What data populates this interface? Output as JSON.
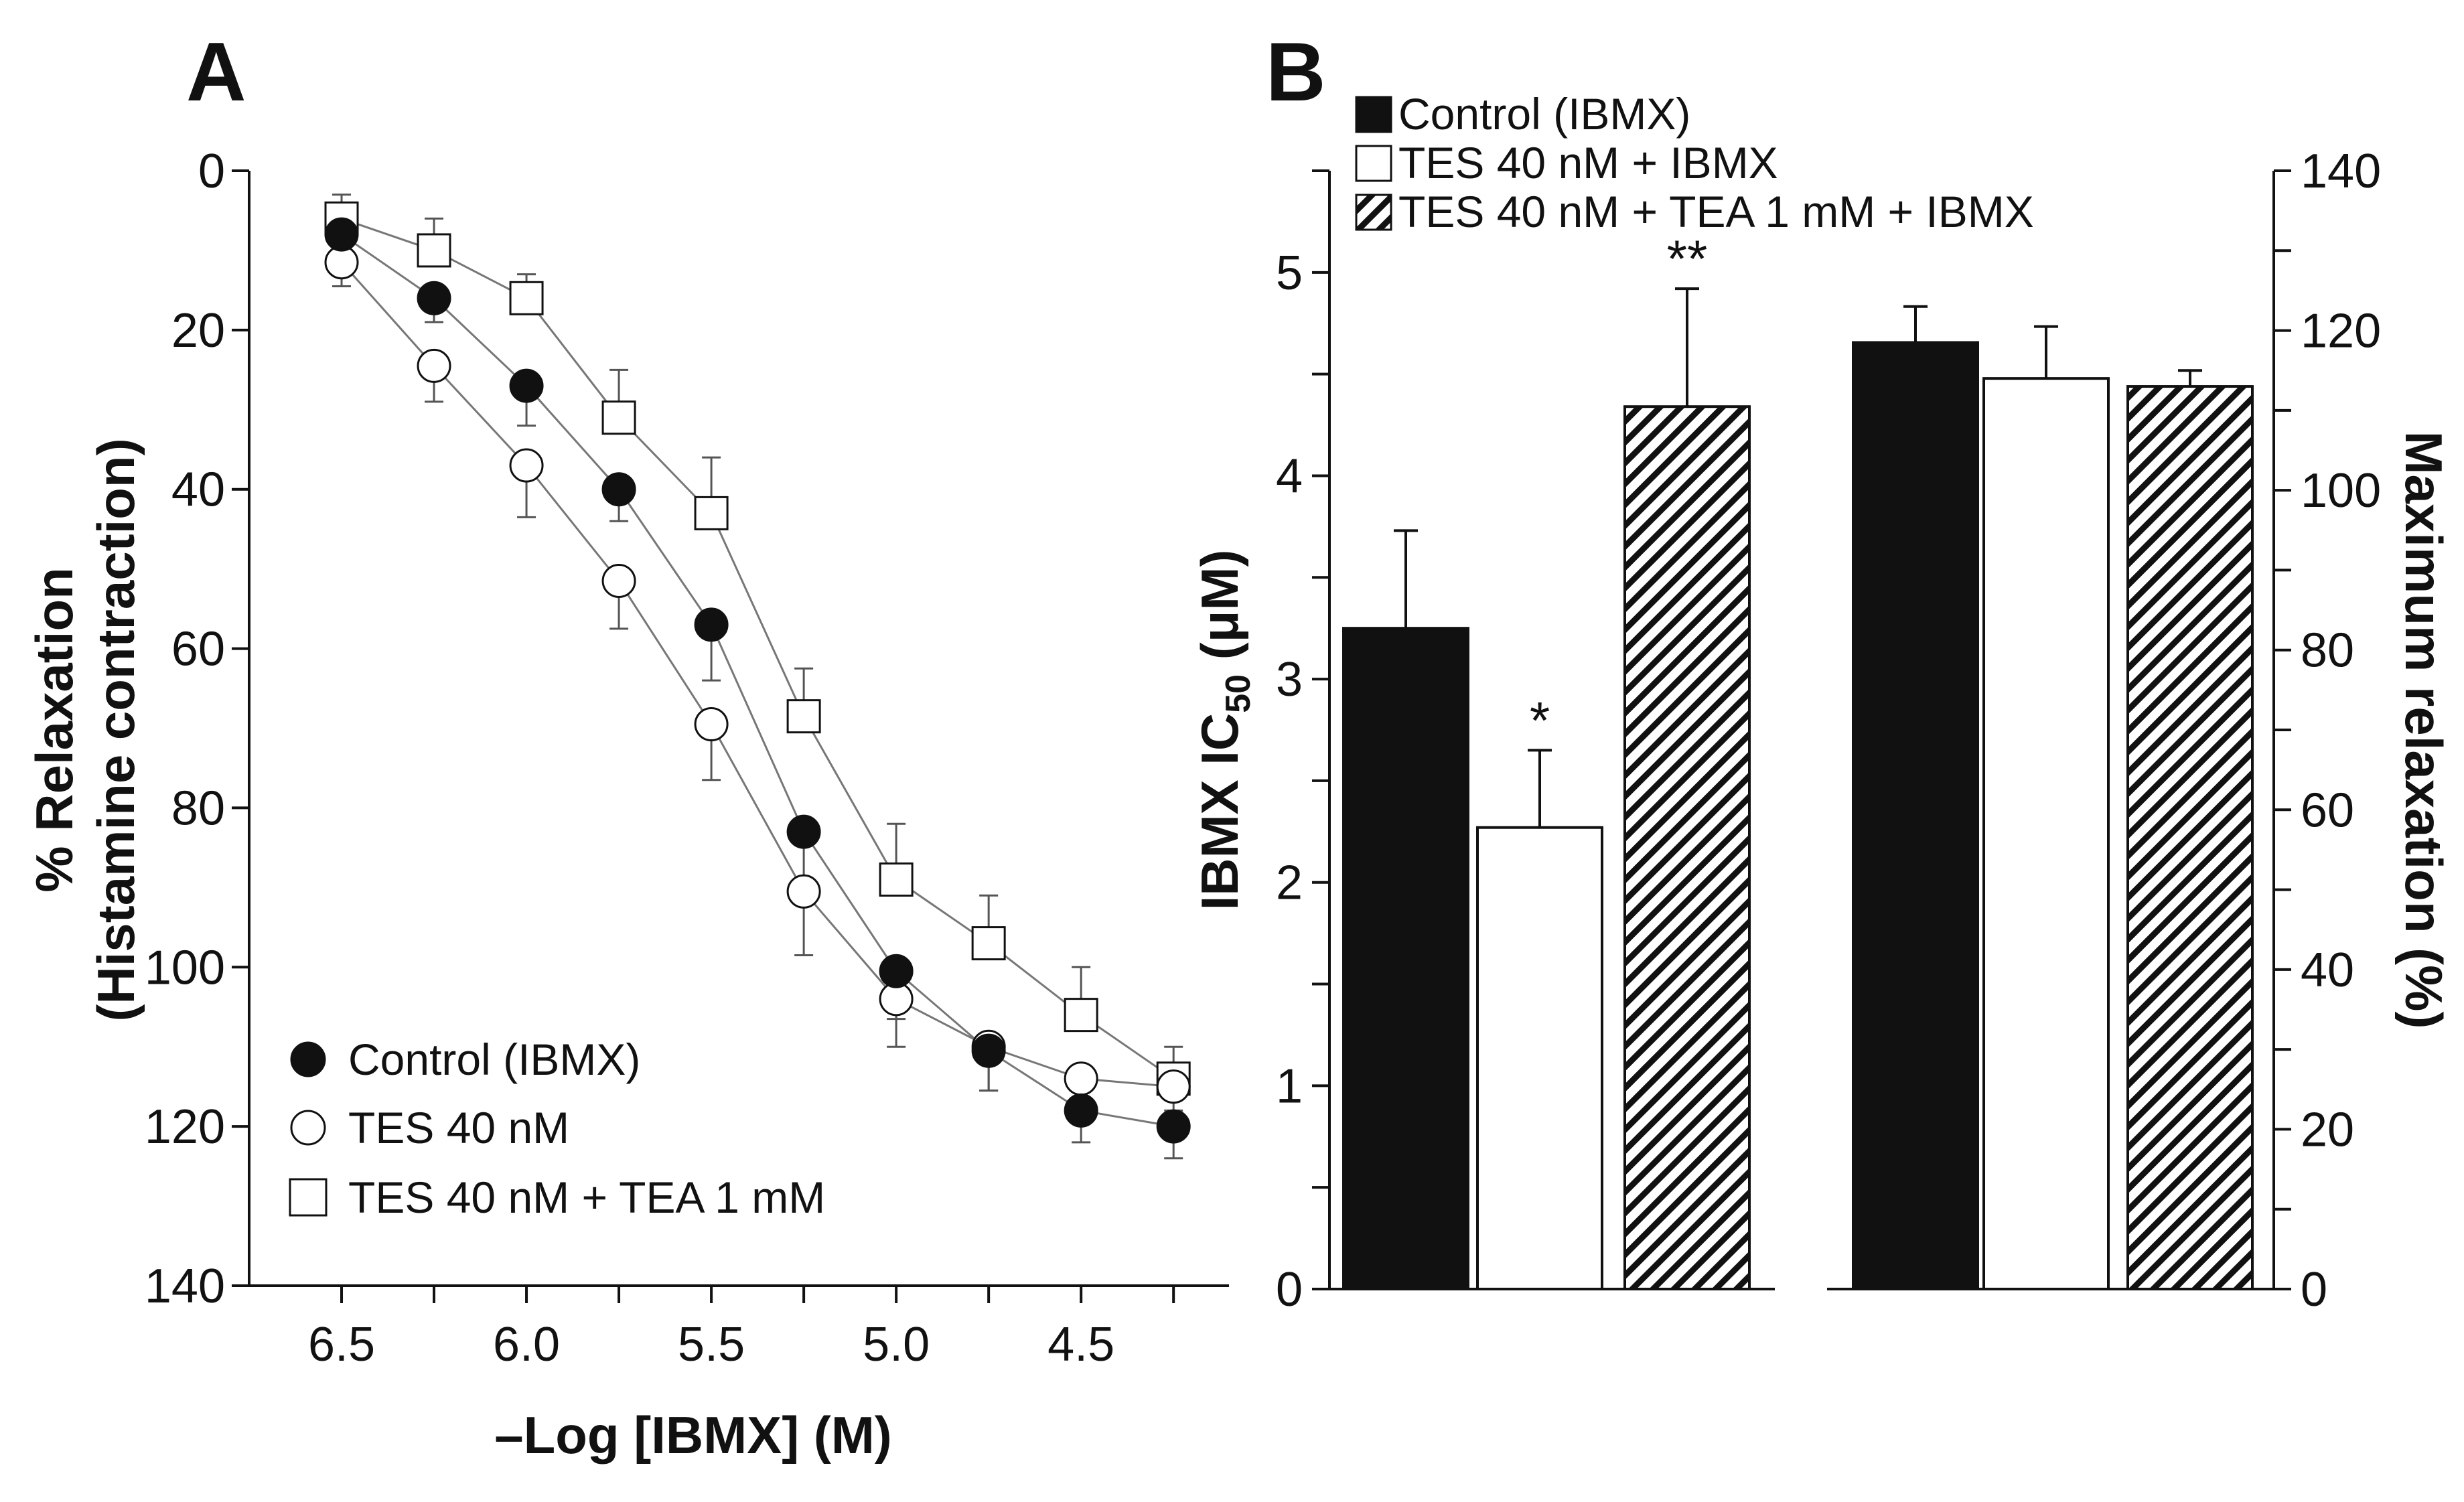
{
  "panel_a_label": "A",
  "panel_b_label": "B",
  "chart_data": [
    {
      "type": "line",
      "panel": "A",
      "xlabel": "–Log [IBMX] (M)",
      "ylabel_line1": "% Relaxation",
      "ylabel_line2": "(Histamine contraction)",
      "x_ticks": [
        "6.5",
        "6.0",
        "5.5",
        "5.0",
        "4.5"
      ],
      "x_tick_values": [
        6.5,
        6.0,
        5.5,
        5.0,
        4.5
      ],
      "y_ticks": [
        "0",
        "20",
        "40",
        "60",
        "80",
        "100",
        "120",
        "140"
      ],
      "y_tick_values": [
        0,
        20,
        40,
        60,
        80,
        100,
        120,
        140
      ],
      "xlim": [
        6.75,
        4.1
      ],
      "ylim": [
        0,
        140
      ],
      "y_inverted": true,
      "x": [
        6.5,
        6.25,
        6.0,
        5.75,
        5.5,
        5.25,
        5.0,
        4.75,
        4.5,
        4.25
      ],
      "series": [
        {
          "name": "Control (IBMX)",
          "marker": "filled-circle",
          "values": [
            8,
            16,
            27,
            40,
            57,
            83,
            100.5,
            110.5,
            118,
            120
          ],
          "errors": [
            2,
            3,
            5,
            4,
            7,
            9,
            6,
            5,
            4,
            4
          ]
        },
        {
          "name": "TES 40 nM",
          "marker": "open-circle",
          "values": [
            11.5,
            24.5,
            37,
            51.5,
            69.5,
            90.5,
            104,
            110,
            114,
            115
          ],
          "errors": [
            3,
            4.5,
            6.5,
            6,
            7,
            8,
            6,
            5.5,
            4,
            3
          ]
        },
        {
          "name": "TES 40 nM + TEA 1 mM",
          "marker": "open-square",
          "values": [
            6,
            10,
            16,
            31,
            43,
            68.5,
            89,
            97,
            106,
            114
          ],
          "errors": [
            3,
            4,
            3,
            6,
            7,
            6,
            7,
            6,
            6,
            4
          ]
        }
      ]
    },
    {
      "type": "bar",
      "panel": "B",
      "ylabel_left": "IBMX IC",
      "ylabel_left_sub": "50",
      "ylabel_left_unit": " (μM)",
      "ylabel_right": "Maximum relaxation (%)",
      "y_left_ticks": [
        "0",
        "1",
        "2",
        "3",
        "4",
        "5"
      ],
      "y_left_values": [
        0,
        1,
        2,
        3,
        4,
        5
      ],
      "ylim_left": [
        0,
        5.5
      ],
      "y_right_ticks": [
        "0",
        "20",
        "40",
        "60",
        "80",
        "100",
        "120",
        "140"
      ],
      "y_right_values": [
        0,
        20,
        40,
        60,
        80,
        100,
        120,
        140
      ],
      "ylim_right": [
        0,
        140
      ],
      "legend": [
        "Control (IBMX)",
        "TES 40 nM + IBMX",
        "TES 40 nM + TEA 1 mM + IBMX"
      ],
      "groups": [
        {
          "name": "IC50",
          "axis": "left",
          "values": [
            3.25,
            2.27,
            4.34
          ],
          "errors": [
            0.48,
            0.38,
            0.58
          ],
          "annotations": [
            "",
            "*",
            "**"
          ]
        },
        {
          "name": "Maximum relaxation",
          "axis": "right",
          "values": [
            118.5,
            114,
            113
          ],
          "errors": [
            4.5,
            6.5,
            2
          ]
        }
      ],
      "fills": [
        "solid-black",
        "white",
        "hatched"
      ]
    }
  ]
}
